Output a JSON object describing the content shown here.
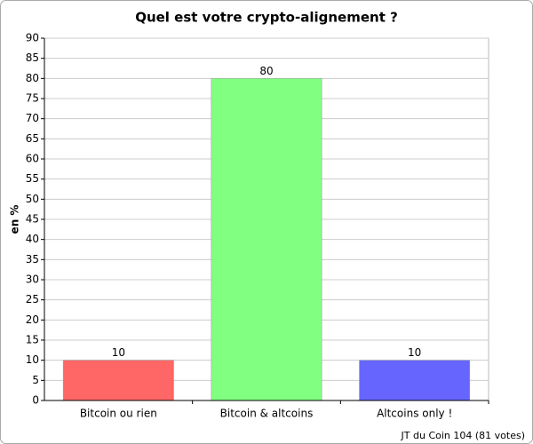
{
  "chart_data": {
    "type": "bar",
    "title": "Quel est votre crypto-alignement ?",
    "y_label": "en %",
    "footer": "JT du Coin 104 (81 votes)",
    "categories": [
      "Bitcoin ou rien",
      "Bitcoin & altcoins",
      "Altcoins only !"
    ],
    "values": [
      10,
      80,
      10
    ],
    "colors": [
      "#ff6666",
      "#80ff80",
      "#6666ff"
    ],
    "ylim": [
      0,
      90
    ],
    "yticks": [
      0,
      5,
      10,
      15,
      20,
      25,
      30,
      35,
      40,
      45,
      50,
      55,
      60,
      65,
      70,
      75,
      80,
      85,
      90
    ],
    "grid": true
  }
}
